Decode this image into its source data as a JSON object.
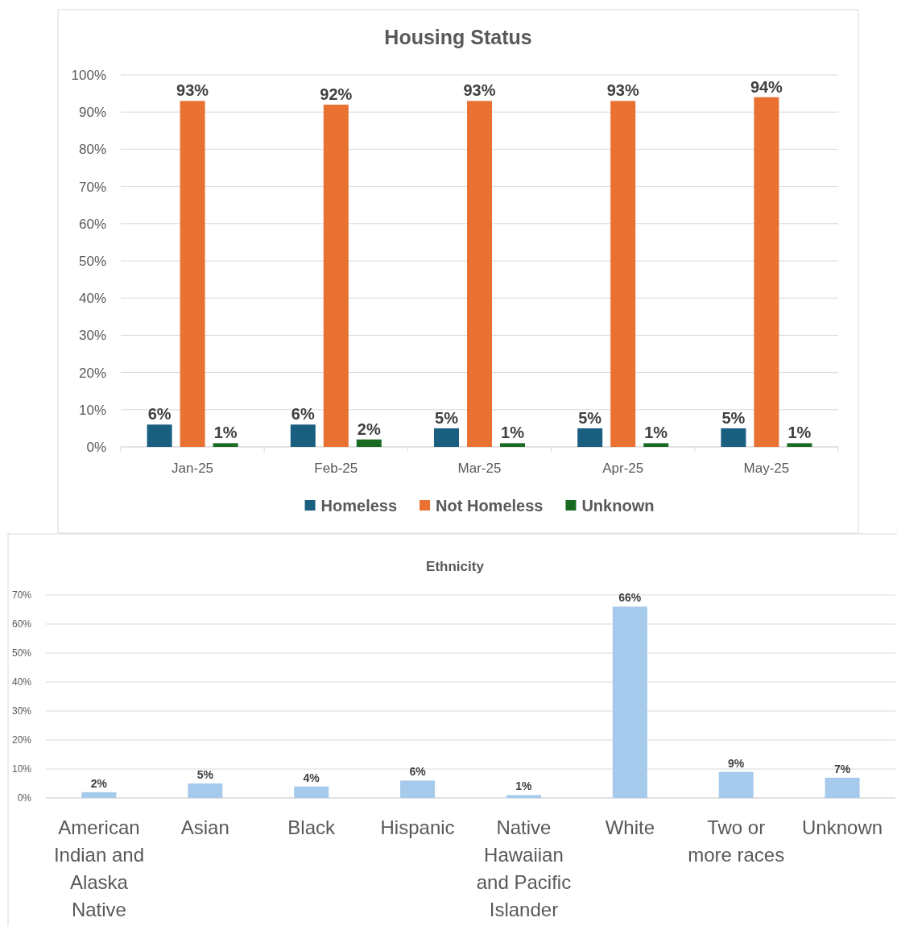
{
  "chart_data": [
    {
      "type": "bar",
      "title": "Housing Status",
      "categories": [
        "Jan-25",
        "Feb-25",
        "Mar-25",
        "Apr-25",
        "May-25"
      ],
      "series": [
        {
          "name": "Homeless",
          "color": "#1a5e80",
          "values": [
            6,
            6,
            5,
            5,
            5
          ],
          "value_labels": [
            "6%",
            "6%",
            "5%",
            "5%",
            "5%"
          ]
        },
        {
          "name": "Not Homeless",
          "color": "#e97132",
          "values": [
            93,
            92,
            93,
            93,
            94
          ],
          "value_labels": [
            "93%",
            "92%",
            "93%",
            "93%",
            "94%"
          ]
        },
        {
          "name": "Unknown",
          "color": "#196b24",
          "values": [
            1,
            2,
            1,
            1,
            1
          ],
          "value_labels": [
            "1%",
            "2%",
            "1%",
            "1%",
            "1%"
          ]
        }
      ],
      "ylim": [
        0,
        100
      ],
      "yticks": [
        {
          "value": 0,
          "label": "0%"
        },
        {
          "value": 10,
          "label": "10%"
        },
        {
          "value": 20,
          "label": "20%"
        },
        {
          "value": 30,
          "label": "30%"
        },
        {
          "value": 40,
          "label": "40%"
        },
        {
          "value": 50,
          "label": "50%"
        },
        {
          "value": 60,
          "label": "60%"
        },
        {
          "value": 70,
          "label": "70%"
        },
        {
          "value": 80,
          "label": "80%"
        },
        {
          "value": 90,
          "label": "90%"
        },
        {
          "value": 100,
          "label": "100%"
        }
      ],
      "grid": "y",
      "legend": "bottom"
    },
    {
      "type": "bar",
      "title": "Ethnicity",
      "categories": [
        "American Indian and Alaska Native",
        "Asian",
        "Black",
        "Hispanic",
        "Native Hawaiian and Pacific Islander",
        "White",
        "Two or more races",
        "Unknown"
      ],
      "series": [
        {
          "color": "#a6caec",
          "values": [
            2,
            5,
            4,
            6,
            1,
            66,
            9,
            7
          ],
          "value_labels": [
            "2%",
            "5%",
            "4%",
            "6%",
            "1%",
            "66%",
            "9%",
            "7%"
          ]
        }
      ],
      "ylim": [
        0,
        70
      ],
      "yticks": [
        {
          "value": 0,
          "label": "0%"
        },
        {
          "value": 10,
          "label": "10%"
        },
        {
          "value": 20,
          "label": "20%"
        },
        {
          "value": 30,
          "label": "30%"
        },
        {
          "value": 40,
          "label": "40%"
        },
        {
          "value": 50,
          "label": "50%"
        },
        {
          "value": 60,
          "label": "60%"
        },
        {
          "value": 70,
          "label": "70%"
        }
      ],
      "grid": "y"
    }
  ]
}
